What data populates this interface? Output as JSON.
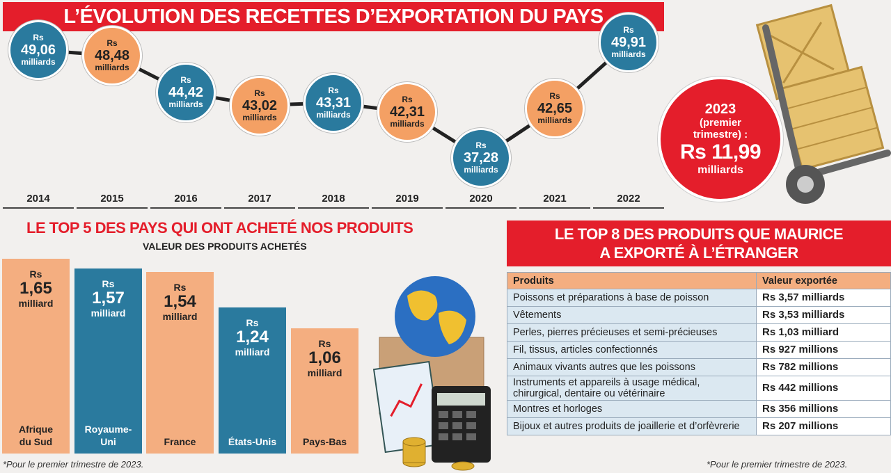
{
  "title": "L’ÉVOLUTION DES RECETTES D’EXPORTATION DU PAYS",
  "chart_data": [
    {
      "type": "line",
      "title": "L’ÉVOLUTION DES RECETTES D’EXPORTATION DU PAYS",
      "unit_prefix": "Rs",
      "unit_suffix": "milliards",
      "categories": [
        "2014",
        "2015",
        "2016",
        "2017",
        "2018",
        "2019",
        "2020",
        "2021",
        "2022"
      ],
      "values": [
        49.06,
        48.48,
        44.42,
        43.02,
        43.31,
        42.31,
        37.28,
        42.65,
        49.91
      ],
      "labels": [
        "49,06",
        "48,48",
        "44,42",
        "43,02",
        "43,31",
        "42,31",
        "37,28",
        "42,65",
        "49,91"
      ],
      "colors": [
        "#2a7a9e",
        "#f4a064",
        "#2a7a9e",
        "#f4a064",
        "#2a7a9e",
        "#f4a064",
        "#2a7a9e",
        "#f4a064",
        "#2a7a9e"
      ]
    },
    {
      "type": "bar",
      "title": "LE TOP 5 DES PAYS QUI ONT ACHETÉ NOS PRODUITS",
      "subtitle": "VALEUR DES PRODUITS ACHETÉS",
      "categories": [
        "Afrique du Sud",
        "Royaume-Uni",
        "France",
        "États-Unis",
        "Pays-Bas"
      ],
      "values": [
        1.65,
        1.57,
        1.54,
        1.24,
        1.06
      ],
      "labels": [
        "1,65",
        "1,57",
        "1,54",
        "1,24",
        "1,06"
      ],
      "unit_prefix": "Rs",
      "unit_suffix": "milliard",
      "colors": [
        "#f4ae80",
        "#2a7a9e",
        "#f4ae80",
        "#2a7a9e",
        "#f4ae80"
      ]
    },
    {
      "type": "table",
      "title": "LE TOP 8 DES PRODUITS QUE MAURICE A EXPORTÉ À L’ÉTRANGER",
      "columns": [
        "Produits",
        "Valeur exportée"
      ],
      "rows": [
        [
          "Poissons et préparations à base de poisson",
          "Rs 3,57 milliards"
        ],
        [
          "Vêtements",
          "Rs 3,53 milliards"
        ],
        [
          "Perles, pierres précieuses et semi-précieuses",
          "Rs 1,03 milliard"
        ],
        [
          "Fil, tissus, articles confectionnés",
          "Rs 927 millions"
        ],
        [
          "Animaux vivants autres que les poissons",
          "Rs 782 millions"
        ],
        [
          "Instruments et appareils à usage médical, chirurgical, dentaire ou vétérinaire",
          "Rs 442 millions"
        ],
        [
          "Montres et horloges",
          "Rs 356 millions"
        ],
        [
          "Bijoux et autres produits de joaillerie et d’orfèvrerie",
          "Rs 207 millions"
        ]
      ]
    }
  ],
  "q1_2023": {
    "year": "2023",
    "desc_1": "(premier",
    "desc_2": "trimestre) :",
    "value": "Rs 11,99",
    "unit": "milliards"
  },
  "top8_title_1": "LE TOP 8 DES PRODUITS QUE MAURICE",
  "top8_title_2": "A EXPORTÉ À L’ÉTRANGER",
  "footnote_left": "*Pour le premier trimestre de 2023.",
  "footnote_right": "*Pour le premier trimestre de 2023.",
  "colors": {
    "red": "#e41e2b",
    "blue": "#2a7a9e",
    "orange": "#f4a064"
  }
}
